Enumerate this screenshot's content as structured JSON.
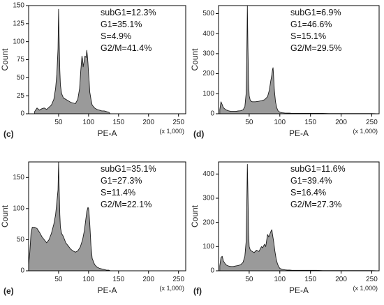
{
  "figure_title": "",
  "colors": {
    "fill": "#9a9a9a",
    "stroke": "#1a1a1a",
    "axis": "#000000",
    "background": "#ffffff"
  },
  "chart_data": [
    {
      "type": "area",
      "panel_label": "(c)",
      "xlabel": "PE-A",
      "ylabel": "Count",
      "x_multiplier": "(x 1,000)",
      "xlim": [
        0,
        262
      ],
      "ylim": [
        0,
        150
      ],
      "x_ticks": [
        50,
        100,
        150,
        200,
        250
      ],
      "y_ticks": [
        0,
        25,
        50,
        75,
        100,
        125,
        150
      ],
      "grid": false,
      "annotations": [
        "subG1=12.3%",
        "G1=35.1%",
        "S=4.9%",
        "G2/M=41.4%"
      ],
      "x": [
        10,
        14,
        18,
        22,
        26,
        30,
        34,
        38,
        42,
        45,
        47,
        49,
        50,
        51,
        52,
        53,
        55,
        58,
        62,
        66,
        70,
        74,
        78,
        82,
        85,
        87,
        89,
        90,
        91,
        92,
        93,
        94,
        96,
        97,
        98,
        99,
        100,
        101,
        102,
        104,
        106,
        110,
        114,
        118,
        122,
        126,
        130,
        134,
        136
      ],
      "y": [
        3,
        8,
        5,
        7,
        8,
        6,
        9,
        12,
        20,
        35,
        55,
        90,
        145,
        100,
        60,
        40,
        28,
        22,
        20,
        18,
        16,
        15,
        14,
        20,
        35,
        60,
        80,
        75,
        65,
        70,
        75,
        80,
        78,
        88,
        80,
        70,
        55,
        45,
        30,
        20,
        12,
        8,
        6,
        5,
        4,
        4,
        3,
        2,
        0
      ]
    },
    {
      "type": "area",
      "panel_label": "(d)",
      "xlabel": "PE-A",
      "ylabel": "Count",
      "x_multiplier": "(x 1,000)",
      "xlim": [
        0,
        262
      ],
      "ylim": [
        0,
        540
      ],
      "x_ticks": [
        50,
        100,
        150,
        200,
        250
      ],
      "y_ticks": [
        0,
        100,
        200,
        300,
        400,
        500
      ],
      "grid": false,
      "annotations": [
        "subG1=6.9%",
        "G1=46.6%",
        "S=15.1%",
        "G2/M=29.5%"
      ],
      "x": [
        2,
        4,
        6,
        8,
        12,
        16,
        20,
        24,
        28,
        32,
        36,
        40,
        43,
        45,
        46,
        47,
        48,
        49,
        50,
        52,
        55,
        60,
        65,
        70,
        75,
        80,
        83,
        85,
        87,
        88,
        89,
        90,
        91,
        93,
        95,
        97,
        100,
        104,
        108,
        112,
        116,
        120,
        130,
        140,
        150,
        160,
        170,
        180,
        190,
        200,
        210,
        220,
        230,
        240,
        250,
        258
      ],
      "y": [
        20,
        60,
        45,
        30,
        20,
        15,
        12,
        12,
        12,
        14,
        15,
        20,
        35,
        100,
        260,
        540,
        330,
        160,
        90,
        65,
        60,
        60,
        62,
        65,
        70,
        85,
        120,
        160,
        195,
        220,
        230,
        180,
        120,
        60,
        30,
        15,
        8,
        5,
        4,
        3,
        3,
        2,
        2,
        2,
        2,
        2,
        2,
        1,
        1,
        1,
        1,
        1,
        1,
        1,
        1,
        0
      ]
    },
    {
      "type": "area",
      "panel_label": "(e)",
      "xlabel": "PE-A",
      "ylabel": "Count",
      "x_multiplier": "(x 1,000)",
      "xlim": [
        0,
        262
      ],
      "ylim": [
        0,
        175
      ],
      "x_ticks": [
        50,
        100,
        150,
        200,
        250
      ],
      "y_ticks": [
        0,
        50,
        100,
        150
      ],
      "grid": false,
      "annotations": [
        "subG1=35.1%",
        "G1=27.3%",
        "S=11.4%",
        "G2/M=22.1%"
      ],
      "x": [
        0,
        2,
        4,
        6,
        10,
        14,
        18,
        22,
        26,
        30,
        34,
        38,
        42,
        45,
        47,
        49,
        50,
        51,
        52,
        53,
        55,
        58,
        62,
        66,
        70,
        74,
        78,
        82,
        86,
        90,
        93,
        95,
        97,
        99,
        100,
        101,
        102,
        104,
        106,
        110,
        114,
        118,
        122,
        126,
        130,
        134,
        136
      ],
      "y": [
        10,
        30,
        60,
        70,
        70,
        68,
        62,
        55,
        50,
        45,
        50,
        60,
        75,
        90,
        110,
        130,
        175,
        130,
        90,
        70,
        60,
        55,
        45,
        40,
        35,
        32,
        30,
        32,
        38,
        50,
        65,
        80,
        95,
        102,
        100,
        90,
        75,
        40,
        20,
        10,
        6,
        4,
        3,
        2,
        1,
        1,
        0
      ]
    },
    {
      "type": "area",
      "panel_label": "(f)",
      "xlabel": "PE-A",
      "ylabel": "Count",
      "x_multiplier": "(x 1,000)",
      "xlim": [
        0,
        262
      ],
      "ylim": [
        0,
        450
      ],
      "x_ticks": [
        50,
        100,
        150,
        200,
        250
      ],
      "y_ticks": [
        0,
        100,
        200,
        300,
        400
      ],
      "grid": false,
      "annotations": [
        "subG1=11.6%",
        "G1=39.4%",
        "S=16.4%",
        "G2/M=27.3%"
      ],
      "x": [
        2,
        4,
        6,
        8,
        12,
        16,
        20,
        24,
        28,
        32,
        36,
        40,
        43,
        45,
        46,
        47,
        48,
        49,
        50,
        52,
        55,
        58,
        62,
        66,
        70,
        72,
        75,
        77,
        80,
        82,
        85,
        87,
        88,
        90,
        92,
        94,
        96,
        98,
        100,
        104,
        108,
        112,
        116,
        120,
        130,
        140,
        150,
        160,
        170,
        180,
        190,
        200,
        210,
        220,
        230,
        240,
        250,
        258
      ],
      "y": [
        20,
        55,
        60,
        40,
        25,
        20,
        18,
        18,
        20,
        22,
        25,
        35,
        60,
        120,
        260,
        440,
        320,
        160,
        100,
        85,
        80,
        75,
        85,
        80,
        100,
        95,
        110,
        100,
        150,
        140,
        160,
        170,
        150,
        120,
        80,
        50,
        30,
        18,
        10,
        6,
        4,
        3,
        3,
        2,
        2,
        2,
        2,
        2,
        1,
        1,
        1,
        1,
        1,
        1,
        1,
        1,
        1,
        0
      ]
    }
  ]
}
